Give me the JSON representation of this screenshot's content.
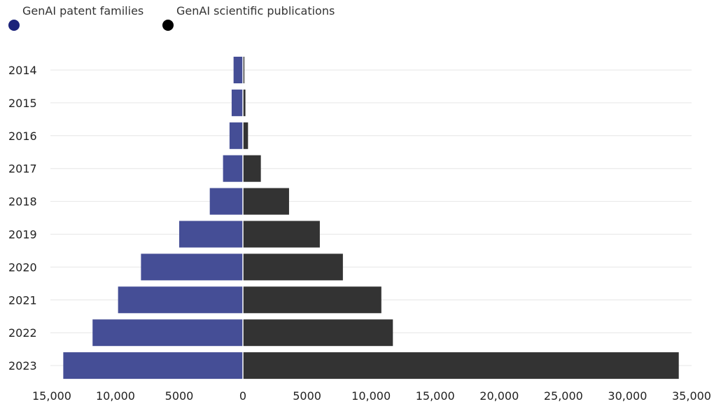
{
  "legend": {
    "patents_label": "GenAI patent families",
    "publications_label": "GenAI scientific publications"
  },
  "colors": {
    "patents": "#454e96",
    "publications": "#333333",
    "patents_dot": "#1c237a",
    "publications_dot": "#000000",
    "grid": "#e6e6e6"
  },
  "chart_data": {
    "type": "bar",
    "orientation": "horizontal-diverging",
    "categories": [
      "2014",
      "2015",
      "2016",
      "2017",
      "2018",
      "2019",
      "2020",
      "2021",
      "2022",
      "2023"
    ],
    "series": [
      {
        "name": "GenAI patent families",
        "direction": "left",
        "values": [
          733,
          883,
          1050,
          1560,
          2600,
          5000,
          8000,
          9800,
          11800,
          14100
        ]
      },
      {
        "name": "GenAI scientific publications",
        "direction": "right",
        "values": [
          116,
          196,
          400,
          1400,
          3600,
          6000,
          7800,
          10800,
          11700,
          34000
        ]
      }
    ],
    "xlim": [
      -15000,
      35000
    ],
    "xticks": [
      {
        "value": -15000,
        "label": "15,000"
      },
      {
        "value": -10000,
        "label": "10,000"
      },
      {
        "value": -5000,
        "label": "5000"
      },
      {
        "value": 0,
        "label": "0"
      },
      {
        "value": 5000,
        "label": "5000"
      },
      {
        "value": 10000,
        "label": "10,000"
      },
      {
        "value": 15000,
        "label": "15,000"
      },
      {
        "value": 20000,
        "label": "20,000"
      },
      {
        "value": 25000,
        "label": "25,000"
      },
      {
        "value": 30000,
        "label": "30,000"
      },
      {
        "value": 35000,
        "label": "35,000"
      }
    ],
    "grid": true,
    "legend_position": "top-left"
  }
}
